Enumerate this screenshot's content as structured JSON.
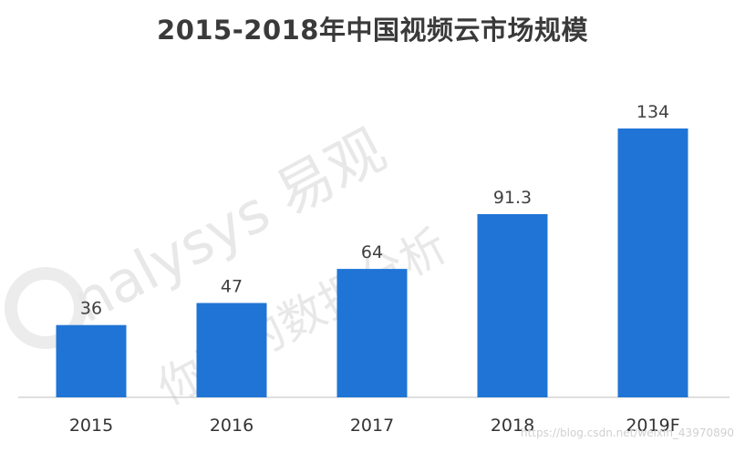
{
  "page_title": "2015-2018年中国视频云市场规模",
  "chart_data": {
    "type": "bar",
    "title": "2015-2018年中国视频云市场规模",
    "categories": [
      "2015",
      "2016",
      "2017",
      "2018",
      "2019F"
    ],
    "values": [
      36,
      47,
      64,
      91.3,
      134
    ],
    "data_labels": [
      "36",
      "47",
      "64",
      "91.3",
      "134"
    ],
    "ylim": [
      0,
      150
    ],
    "xlabel": "",
    "ylabel": "",
    "grid": false,
    "legend": "none",
    "bar_color": "#1f74d6",
    "axis_color": "#bfbfbf"
  },
  "watermark": {
    "brand_text": "nalysys 易观",
    "slogan_text": "你要的数据分析",
    "url_text": "https://blog.csdn.net/weixin_43970890"
  }
}
